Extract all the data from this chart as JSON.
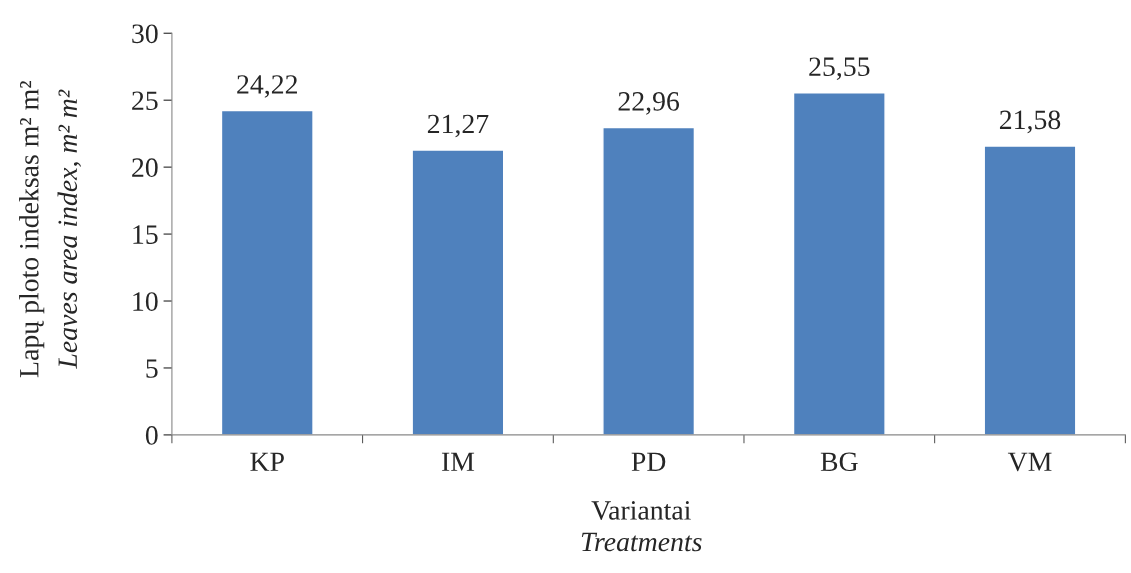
{
  "chart_data": {
    "type": "bar",
    "categories": [
      "KP",
      "IM",
      "PD",
      "BG",
      "VM"
    ],
    "values": [
      24.22,
      21.27,
      22.96,
      25.55,
      21.58
    ],
    "value_labels": [
      "24,22",
      "21,27",
      "22,96",
      "25,55",
      "21,58"
    ],
    "color": "#4f81bd",
    "xlabel": "Variantai\nTreatments",
    "ylabel": "Lapų ploto indeksas m² m²\nLeaves area index, m² m²",
    "ylim": [
      0,
      30
    ],
    "yticks": [
      0,
      5,
      10,
      15,
      20,
      25,
      30
    ],
    "grid": false,
    "legend": false
  }
}
